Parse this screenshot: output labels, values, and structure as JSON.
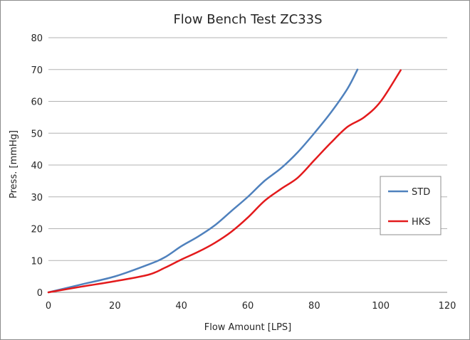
{
  "chart_data": {
    "type": "line",
    "title": "Flow Bench Test  ZC33S",
    "xlabel": "Flow Amount [LPS]",
    "ylabel": "Press. [mmHg]",
    "xlim": [
      0,
      120
    ],
    "ylim": [
      0,
      80
    ],
    "x_ticks": [
      "0",
      "20",
      "40",
      "60",
      "80",
      "100",
      "120"
    ],
    "y_ticks": [
      "0",
      "10",
      "20",
      "30",
      "40",
      "50",
      "60",
      "70",
      "80"
    ],
    "grid": "horizontal",
    "legend_position": "right",
    "series": [
      {
        "name": "STD",
        "color": "#4f81bd",
        "points": [
          [
            0,
            0
          ],
          [
            10,
            2.5
          ],
          [
            20,
            5
          ],
          [
            30,
            8.7
          ],
          [
            35,
            11
          ],
          [
            40,
            14.5
          ],
          [
            45,
            17.5
          ],
          [
            50,
            21
          ],
          [
            55,
            25.5
          ],
          [
            60,
            30
          ],
          [
            65,
            35
          ],
          [
            70,
            39
          ],
          [
            75,
            44
          ],
          [
            80,
            50
          ],
          [
            85,
            56.5
          ],
          [
            90,
            64
          ],
          [
            93,
            70
          ]
        ]
      },
      {
        "name": "HKS",
        "color": "#e31a1c",
        "points": [
          [
            0,
            0
          ],
          [
            10,
            1.8
          ],
          [
            20,
            3.5
          ],
          [
            30,
            5.5
          ],
          [
            35,
            7.7
          ],
          [
            40,
            10.3
          ],
          [
            45,
            12.7
          ],
          [
            50,
            15.5
          ],
          [
            55,
            19
          ],
          [
            60,
            23.5
          ],
          [
            65,
            28.7
          ],
          [
            70,
            32.5
          ],
          [
            75,
            36
          ],
          [
            80,
            41.5
          ],
          [
            85,
            47
          ],
          [
            90,
            52
          ],
          [
            95,
            55
          ],
          [
            100,
            60
          ],
          [
            106,
            69.8
          ]
        ]
      }
    ]
  }
}
